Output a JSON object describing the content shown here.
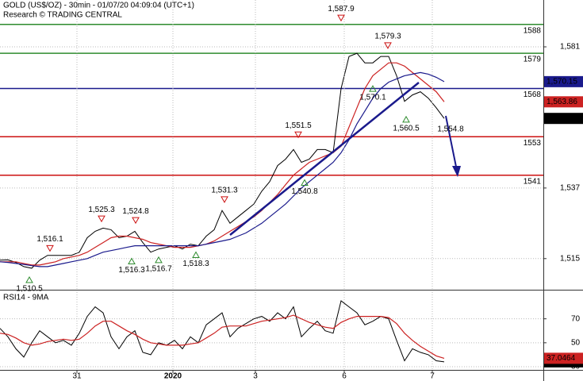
{
  "chart_data": [
    {
      "type": "line",
      "title": "GOLD (US$/OZ) - 30min - 01/07/20 04:09:04 (UTC+1)",
      "subtitle": "Research © TRADING CENTRAL",
      "x": [
        0,
        1,
        2,
        3,
        4,
        5,
        6,
        7,
        8,
        9,
        10,
        11,
        12,
        13,
        14,
        15,
        16,
        17,
        18,
        19,
        20,
        21,
        22,
        23,
        24,
        25,
        26,
        27,
        28,
        29,
        30,
        31,
        32,
        33,
        34,
        35,
        36,
        37,
        38,
        39,
        40,
        41,
        42,
        43,
        44,
        45,
        46,
        47,
        48,
        49,
        50,
        51,
        52,
        53,
        54,
        55,
        56
      ],
      "xlim": [
        0,
        68.5
      ],
      "ylim": [
        1505.3,
        1595.6
      ],
      "yticks": [
        {
          "value": 1581,
          "label": "1,581"
        },
        {
          "value": 1537,
          "label": "1,537"
        },
        {
          "value": 1515,
          "label": "1,515"
        }
      ],
      "grid": true,
      "series": [
        {
          "color": "#000000",
          "last_label": "1,558.69",
          "values": [
            1514.5,
            1514.6,
            1513.8,
            1512.5,
            1512,
            1514.5,
            1516,
            1516,
            1516,
            1516,
            1517,
            1521.5,
            1523.5,
            1524.5,
            1524,
            1521.5,
            1522,
            1523.5,
            1520,
            1517,
            1518,
            1518.5,
            1519,
            1518,
            1519.5,
            1519,
            1522,
            1524,
            1530,
            1526,
            1528,
            1530,
            1532,
            1536,
            1539,
            1544,
            1546,
            1549,
            1545,
            1546,
            1549,
            1549,
            1548,
            1568,
            1578,
            1579,
            1576,
            1576,
            1578,
            1578,
            1572,
            1564,
            1566,
            1567,
            1565,
            1562,
            1558.69
          ]
        },
        {
          "color": "#cc2222",
          "last_label": "1,563.86",
          "values": [
            1514,
            1514,
            1514,
            1513.5,
            1513,
            1513,
            1513.5,
            1514,
            1515,
            1515.5,
            1516,
            1517,
            1518.5,
            1520,
            1521.5,
            1522,
            1522,
            1521.5,
            1521,
            1520,
            1519.5,
            1519,
            1518.5,
            1518.5,
            1518.5,
            1519,
            1519.5,
            1520.5,
            1522,
            1523.5,
            1525,
            1526.5,
            1528,
            1530,
            1532.5,
            1535,
            1538,
            1541,
            1543,
            1545,
            1546,
            1547,
            1548,
            1550,
            1556,
            1562,
            1568,
            1572,
            1574,
            1576,
            1576,
            1575,
            1573,
            1571,
            1569,
            1567,
            1563.86
          ]
        },
        {
          "color": "#1a1a8c",
          "last_label": "1,570.15",
          "values": [
            1514,
            1513.8,
            1513.5,
            1513.2,
            1512.8,
            1512.5,
            1512.5,
            1513,
            1513.5,
            1514,
            1514.5,
            1515,
            1516,
            1517,
            1517.5,
            1518,
            1518.5,
            1519,
            1519,
            1519,
            1519,
            1519,
            1519,
            1519,
            1519,
            1519,
            1519.5,
            1520,
            1520.5,
            1521,
            1522,
            1523,
            1524.5,
            1526,
            1528,
            1530,
            1532,
            1534.5,
            1537,
            1539,
            1541,
            1543,
            1545,
            1548,
            1552,
            1557,
            1561,
            1565,
            1568,
            1570,
            1571,
            1572,
            1572.5,
            1573,
            1572.5,
            1571.5,
            1570.15
          ]
        }
      ],
      "levels": [
        {
          "value": 1588,
          "color": "#2e8b2e"
        },
        {
          "value": 1579,
          "color": "#2e8b2e"
        },
        {
          "value": 1568,
          "color": "#1a1a8c"
        },
        {
          "value": 1553,
          "color": "#cc1111"
        },
        {
          "value": 1541,
          "color": "#cc1111"
        }
      ],
      "annotations": [
        {
          "value": 1587.9,
          "label": "1,587.9",
          "x": 43.0,
          "marker": "down"
        },
        {
          "value": 1579.3,
          "label": "1,579.3",
          "x": 48.9,
          "marker": "down"
        },
        {
          "value": 1570.1,
          "label": "1,570.1",
          "x": 47.0,
          "marker": "up"
        },
        {
          "value": 1560.5,
          "label": "1,560.5",
          "x": 51.2,
          "marker": "up"
        },
        {
          "value": 1554.8,
          "label": "1,554.8",
          "x": 56.8,
          "marker": "none"
        },
        {
          "value": 1551.5,
          "label": "1,551.5",
          "x": 37.6,
          "marker": "down"
        },
        {
          "value": 1540.8,
          "label": "1,540.8",
          "x": 38.4,
          "marker": "up"
        },
        {
          "value": 1531.3,
          "label": "1,531.3",
          "x": 28.3,
          "marker": "down"
        },
        {
          "value": 1525.3,
          "label": "1,525.3",
          "x": 12.8,
          "marker": "down"
        },
        {
          "value": 1524.8,
          "label": "1,524.8",
          "x": 17.1,
          "marker": "down"
        },
        {
          "value": 1516.1,
          "label": "1,516.1",
          "x": 6.3,
          "marker": "down"
        },
        {
          "value": 1516.3,
          "label": "1,516.3",
          "x": 16.6,
          "marker": "up"
        },
        {
          "value": 1516.7,
          "label": "1,516.7",
          "x": 20.0,
          "marker": "up"
        },
        {
          "value": 1518.3,
          "label": "1,518.3",
          "x": 24.7,
          "marker": "up"
        },
        {
          "value": 1510.5,
          "label": "1,510.5",
          "x": 3.7,
          "marker": "up"
        }
      ]
    },
    {
      "type": "line",
      "title": "RSI14 - 9MA",
      "x": [
        0,
        1,
        2,
        3,
        4,
        5,
        6,
        7,
        8,
        9,
        10,
        11,
        12,
        13,
        14,
        15,
        16,
        17,
        18,
        19,
        20,
        21,
        22,
        23,
        24,
        25,
        26,
        27,
        28,
        29,
        30,
        31,
        32,
        33,
        34,
        35,
        36,
        37,
        38,
        39,
        40,
        41,
        42,
        43,
        44,
        45,
        46,
        47,
        48,
        49,
        50,
        51,
        52,
        53,
        54,
        55,
        56
      ],
      "xlim": [
        0,
        68.5
      ],
      "xticks": [
        {
          "value": 9.7,
          "label": "31"
        },
        {
          "value": 21.8,
          "label": "2020"
        },
        {
          "value": 32.2,
          "label": "3"
        },
        {
          "value": 43.4,
          "label": "6"
        },
        {
          "value": 54.5,
          "label": "7"
        }
      ],
      "ylim": [
        26.7,
        92.3
      ],
      "yticks": [
        70,
        50,
        30
      ],
      "grid": true,
      "series": [
        {
          "color": "#000000",
          "values": [
            62,
            55,
            45,
            38,
            50,
            60,
            55,
            50,
            52,
            48,
            58,
            72,
            80,
            75,
            55,
            45,
            55,
            60,
            42,
            40,
            50,
            48,
            52,
            45,
            55,
            50,
            65,
            70,
            75,
            55,
            62,
            66,
            70,
            72,
            68,
            75,
            70,
            80,
            55,
            62,
            68,
            60,
            58,
            85,
            80,
            75,
            65,
            68,
            72,
            70,
            52,
            35,
            45,
            42,
            40,
            35,
            34.0672
          ]
        },
        {
          "color": "#cc2222",
          "values": [
            58,
            57,
            54,
            50,
            48,
            49,
            51,
            52,
            53,
            52,
            53,
            58,
            64,
            68,
            68,
            64,
            60,
            57,
            53,
            50,
            49,
            48,
            48,
            48,
            49,
            50,
            54,
            58,
            63,
            64,
            64,
            64,
            66,
            68,
            69,
            70,
            71,
            73,
            70,
            67,
            65,
            63,
            62,
            67,
            70,
            72,
            72,
            72,
            72,
            71,
            66,
            58,
            52,
            47,
            43,
            39,
            37.0464
          ]
        }
      ]
    }
  ]
}
